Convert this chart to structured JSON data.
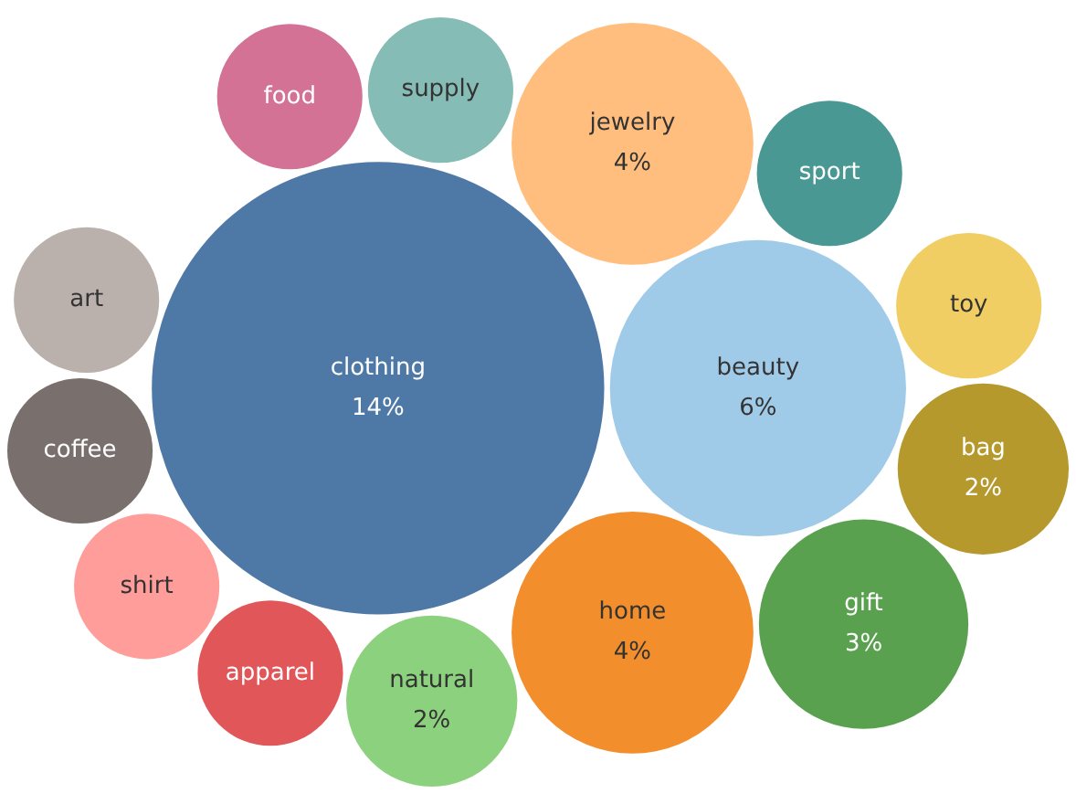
{
  "chart_data": {
    "type": "other",
    "categories": [
      "clothing",
      "beauty",
      "home",
      "jewelry",
      "gift",
      "natural",
      "bag",
      "toy",
      "sport",
      "supply",
      "apparel",
      "shirt",
      "coffee",
      "art",
      "food"
    ],
    "values": [
      14,
      6,
      4,
      4,
      3,
      2,
      2,
      null,
      null,
      null,
      null,
      null,
      null,
      null,
      null
    ],
    "value_labels": [
      "14%",
      "6%",
      "4%",
      "4%",
      "3%",
      "2%",
      "2%",
      null,
      null,
      null,
      null,
      null,
      null,
      null,
      null
    ],
    "colors": [
      "#4e79a7",
      "#a0cbe8",
      "#f28e2b",
      "#ffbe7d",
      "#59a14f",
      "#8cd17d",
      "#b6992d",
      "#f1ce63",
      "#499894",
      "#86bcb6",
      "#e15759",
      "#ff9d9a",
      "#79706e",
      "#bab0ac",
      "#d37295"
    ]
  }
}
